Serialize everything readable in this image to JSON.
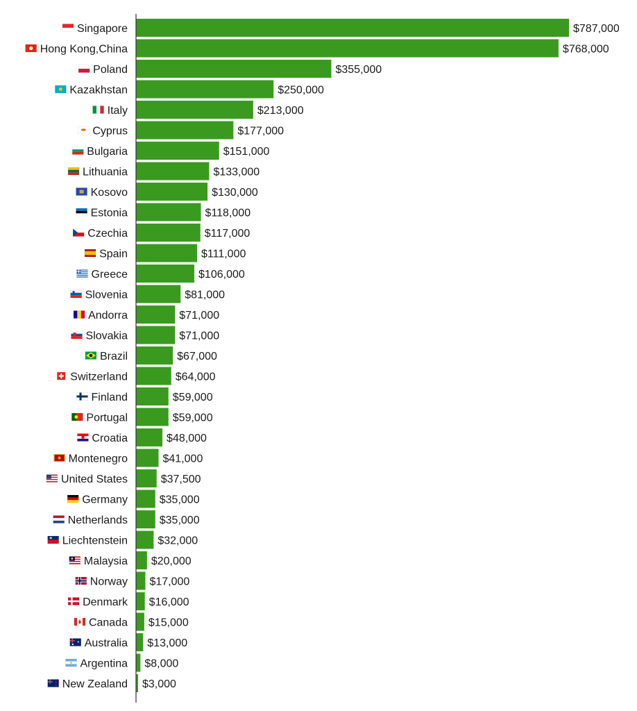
{
  "chart_data": {
    "type": "bar",
    "orientation": "horizontal",
    "bar_color": "#3a9a1f",
    "axis_color": "#333333",
    "categories": [
      "Singapore",
      "Hong Kong,China",
      "Poland",
      "Kazakhstan",
      "Italy",
      "Cyprus",
      "Bulgaria",
      "Lithuania",
      "Kosovo",
      "Estonia",
      "Czechia",
      "Spain",
      "Greece",
      "Slovenia",
      "Andorra",
      "Slovakia",
      "Brazil",
      "Switzerland",
      "Finland",
      "Portugal",
      "Croatia",
      "Montenegro",
      "United States",
      "Germany",
      "Netherlands",
      "Liechtenstein",
      "Malaysia",
      "Norway",
      "Denmark",
      "Canada",
      "Australia",
      "Argentina",
      "New Zealand"
    ],
    "values": [
      787000,
      768000,
      355000,
      250000,
      213000,
      177000,
      151000,
      133000,
      130000,
      118000,
      117000,
      111000,
      106000,
      81000,
      71000,
      71000,
      67000,
      64000,
      59000,
      59000,
      48000,
      41000,
      37500,
      35000,
      35000,
      32000,
      20000,
      17000,
      16000,
      15000,
      13000,
      8000,
      3000
    ],
    "value_labels": [
      "$787,000",
      "$768,000",
      "$355,000",
      "$250,000",
      "$213,000",
      "$177,000",
      "$151,000",
      "$133,000",
      "$130,000",
      "$118,000",
      "$117,000",
      "$111,000",
      "$106,000",
      "$81,000",
      "$71,000",
      "$71,000",
      "$67,000",
      "$64,000",
      "$59,000",
      "$59,000",
      "$48,000",
      "$41,000",
      "$37,500",
      "$35,000",
      "$35,000",
      "$32,000",
      "$20,000",
      "$17,000",
      "$16,000",
      "$15,000",
      "$13,000",
      "$8,000",
      "$3,000"
    ],
    "flag_icons": [
      "singapore-flag-icon",
      "hong-kong-flag-icon",
      "poland-flag-icon",
      "kazakhstan-flag-icon",
      "italy-flag-icon",
      "cyprus-flag-icon",
      "bulgaria-flag-icon",
      "lithuania-flag-icon",
      "kosovo-flag-icon",
      "estonia-flag-icon",
      "czechia-flag-icon",
      "spain-flag-icon",
      "greece-flag-icon",
      "slovenia-flag-icon",
      "andorra-flag-icon",
      "slovakia-flag-icon",
      "brazil-flag-icon",
      "switzerland-flag-icon",
      "finland-flag-icon",
      "portugal-flag-icon",
      "croatia-flag-icon",
      "montenegro-flag-icon",
      "united-states-flag-icon",
      "germany-flag-icon",
      "netherlands-flag-icon",
      "liechtenstein-flag-icon",
      "malaysia-flag-icon",
      "norway-flag-icon",
      "denmark-flag-icon",
      "canada-flag-icon",
      "australia-flag-icon",
      "argentina-flag-icon",
      "new-zealand-flag-icon"
    ],
    "xlim": [
      0,
      787000
    ],
    "grid": false,
    "legend": "none"
  }
}
